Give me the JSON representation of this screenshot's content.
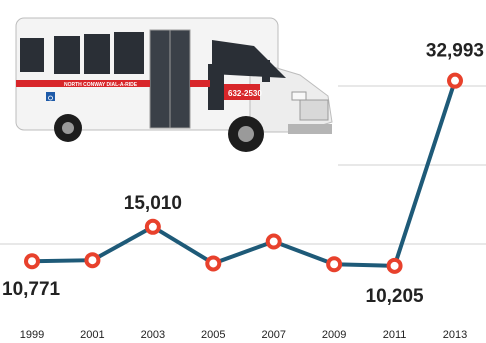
{
  "colors": {
    "line": "#1e5a78",
    "marker": "#e8412c",
    "grid": "#d0d0d0",
    "text": "#222222",
    "bus_body": "#f4f4f4",
    "bus_stripe": "#d8262a",
    "bus_window": "#2a2f36"
  },
  "illustration": {
    "icon": "shuttle-bus-icon",
    "route_sign": "NORTH CONWAY DIAL-A-RIDE",
    "phone": "632-2530",
    "accessibility_icon": "wheelchair-icon"
  },
  "chart_data": {
    "type": "line",
    "title": "",
    "xlabel": "",
    "ylabel": "",
    "grid": true,
    "x": [
      "1999",
      "2001",
      "2003",
      "2005",
      "2007",
      "2009",
      "2011",
      "2013"
    ],
    "series": [
      {
        "values": [
          10771,
          10900,
          15010,
          10500,
          13200,
          10400,
          10205,
          32993
        ]
      }
    ],
    "data_labels": [
      {
        "x": "1999",
        "text": "10,771"
      },
      {
        "x": "2003",
        "text": "15,010"
      },
      {
        "x": "2011",
        "text": "10,205"
      },
      {
        "x": "2013",
        "text": "32,993"
      }
    ],
    "ylim": [
      6000,
      38000
    ]
  }
}
